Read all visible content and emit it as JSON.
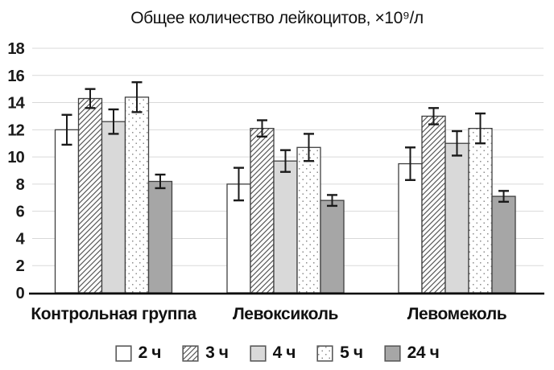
{
  "chart_data": {
    "type": "bar",
    "title": "Общее количество лейкоцитов, ×10⁹/л",
    "categories": [
      "Контрольная группа",
      "Левоксиколь",
      "Левомеколь"
    ],
    "series": [
      {
        "name": "2 ч",
        "fill": "white",
        "values": [
          12.0,
          8.0,
          9.5
        ],
        "errors": [
          1.1,
          1.2,
          1.2
        ]
      },
      {
        "name": "3 ч",
        "fill": "hatch",
        "values": [
          14.3,
          12.1,
          13.0
        ],
        "errors": [
          0.7,
          0.6,
          0.6
        ]
      },
      {
        "name": "4 ч",
        "fill": "lightgray",
        "values": [
          12.6,
          9.7,
          11.0
        ],
        "errors": [
          0.9,
          0.8,
          0.9
        ]
      },
      {
        "name": "5 ч",
        "fill": "dots",
        "values": [
          14.4,
          10.7,
          12.1
        ],
        "errors": [
          1.1,
          1.0,
          1.1
        ]
      },
      {
        "name": "24 ч",
        "fill": "darkgray",
        "values": [
          8.2,
          6.8,
          7.1
        ],
        "errors": [
          0.5,
          0.4,
          0.4
        ]
      }
    ],
    "ylim": [
      0,
      18
    ],
    "yticks": [
      0,
      2,
      4,
      6,
      8,
      10,
      12,
      14,
      16,
      18
    ],
    "grid": "horizontal",
    "legend_position": "bottom",
    "error_bars": true,
    "colors": {
      "light_gray": "#d9d9d9",
      "dark_gray": "#a6a6a6",
      "bar_border": "#404040",
      "grid": "#d9d9d9",
      "axis": "#000000",
      "error": "#1a1a1a",
      "hatch_line": "#595959",
      "dot_color": "#8c8c8c",
      "text": "#111111"
    }
  }
}
